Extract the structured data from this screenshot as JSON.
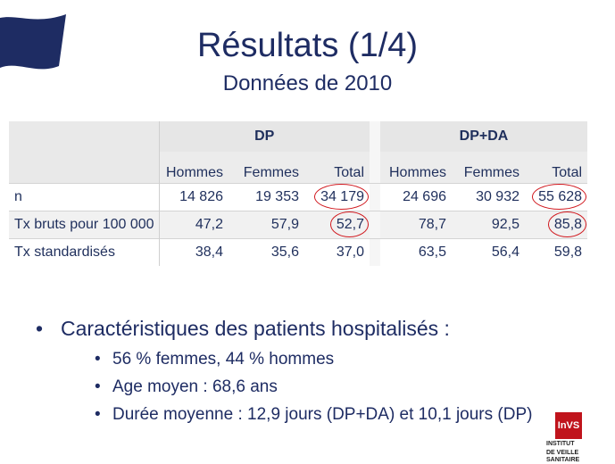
{
  "slide": {
    "title": "Résultats (1/4)",
    "subtitle": "Données de 2010"
  },
  "table": {
    "groups": [
      "DP",
      "DP+DA"
    ],
    "columns": [
      "Hommes",
      "Femmes",
      "Total",
      "Hommes",
      "Femmes",
      "Total"
    ],
    "rows": [
      {
        "label": "n",
        "values": [
          "14 826",
          "19 353",
          "34 179",
          "24 696",
          "30 932",
          "55 628"
        ]
      },
      {
        "label": "Tx bruts pour 100 000",
        "values": [
          "47,2",
          "57,9",
          "52,7",
          "78,7",
          "92,5",
          "85,8"
        ]
      },
      {
        "label": "Tx standardisés",
        "values": [
          "38,4",
          "35,6",
          "37,0",
          "63,5",
          "56,4",
          "59,8"
        ]
      }
    ],
    "highlight_color": "#d0181e"
  },
  "bullets": {
    "main": "Caractéristiques des patients hospitalisés :",
    "sub": [
      "56 % femmes, 44 % hommes",
      "Age moyen : 68,6 ans",
      "Durée moyenne : 12,9 jours (DP+DA) et 10,1 jours (DP)"
    ]
  },
  "logo": {
    "mark": "InVS",
    "line1": "INSTITUT",
    "line2": "DE VEILLE SANITAIRE"
  },
  "colors": {
    "title": "#1e2c63",
    "flag": "#1e2c63",
    "logo": "#c0141c"
  }
}
